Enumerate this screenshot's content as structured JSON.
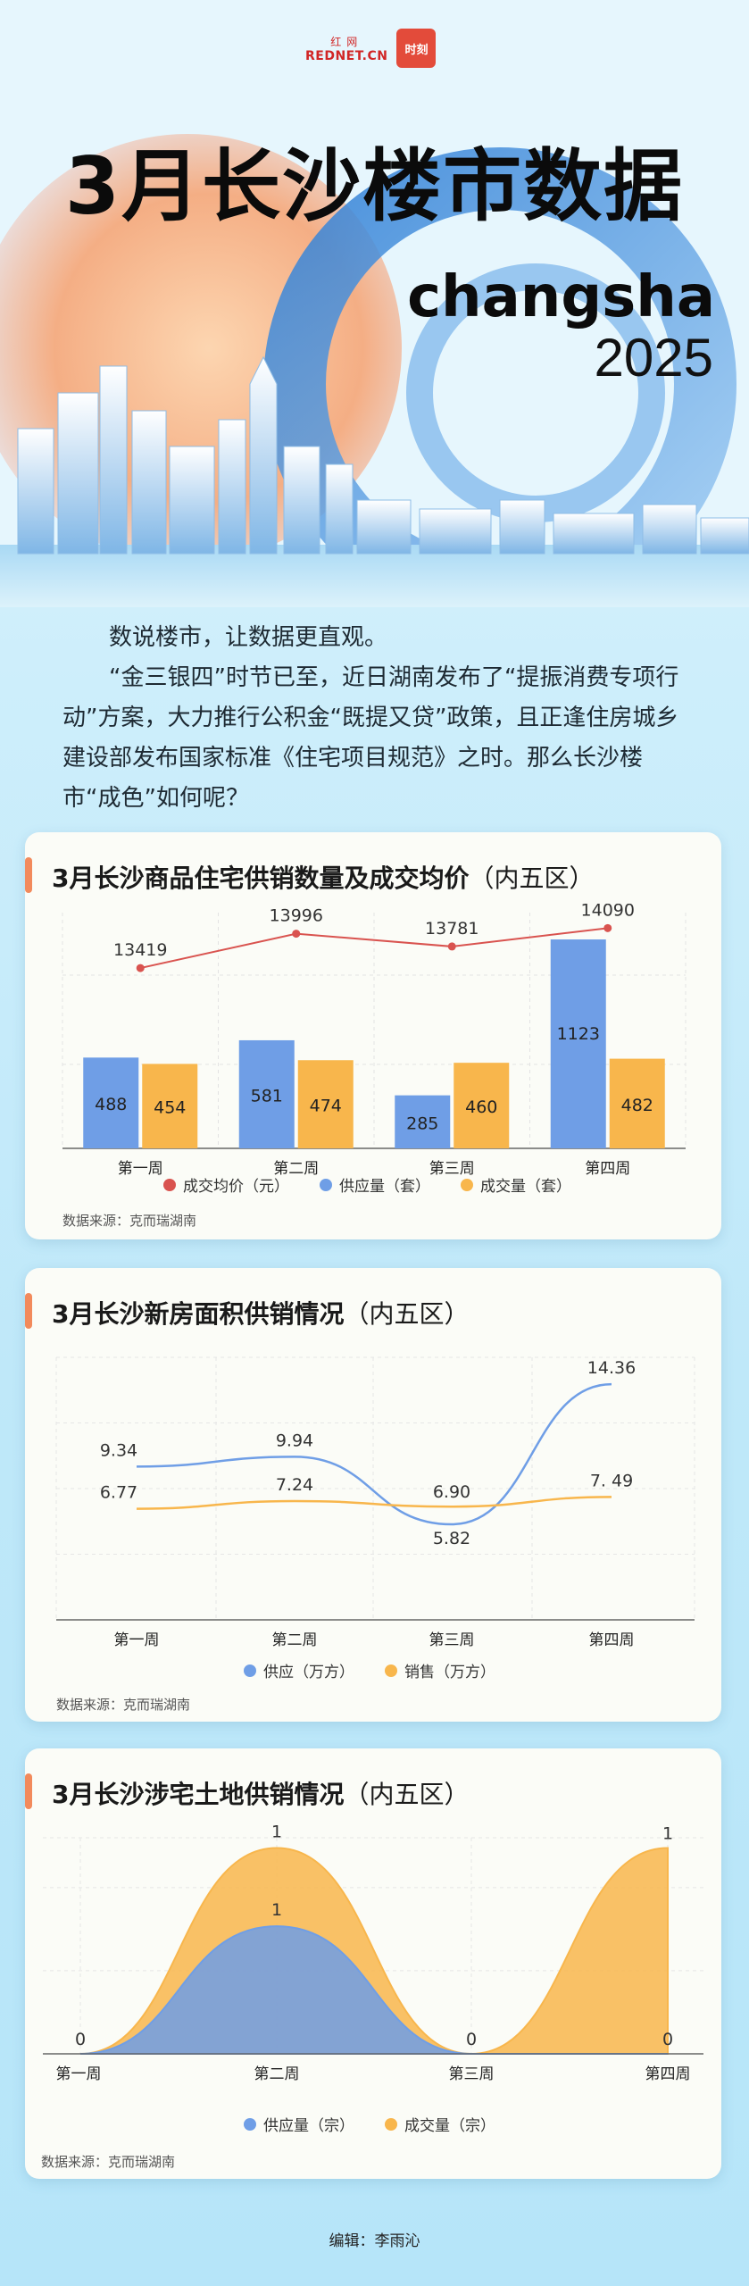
{
  "header": {
    "logo_text": "REDNET.CN",
    "logo_sub": "红网",
    "logo_badge": "时刻",
    "title": "3月长沙楼市数据",
    "subtitle": "changsha",
    "year": "2025"
  },
  "intro": {
    "p1": "数说楼市，让数据更直观。",
    "p2": "“金三银四”时节已至，近日湖南发布了“提振消费专项行动”方案，大力推行公积金“既提又贷”政策，且正逢住房城乡建设部发布国家标准《住宅项目规范》之时。那么长沙楼市“成色”如何呢？"
  },
  "colors": {
    "blue": "#6f9ee6",
    "orange": "#f8b64c",
    "red": "#d9534f",
    "accent": "#f28a5c"
  },
  "chart_data": [
    {
      "type": "bar",
      "title": "3月长沙商品住宅供销数量及成交均价",
      "title_suffix": "（内五区）",
      "categories": [
        "第一周",
        "第二周",
        "第三周",
        "第四周"
      ],
      "series": [
        {
          "name": "供应量（套）",
          "values": [
            488,
            581,
            285,
            1123
          ],
          "color": "#6f9ee6"
        },
        {
          "name": "成交量（套）",
          "values": [
            454,
            474,
            460,
            482
          ],
          "color": "#f8b64c"
        },
        {
          "name": "成交均价（元）",
          "values": [
            13419,
            13996,
            13781,
            14090
          ],
          "color": "#d9534f",
          "type": "line"
        }
      ],
      "legend_order": [
        "成交均价（元）",
        "供应量（套）",
        "成交量（套）"
      ],
      "legend": "bottom",
      "source": "数据来源：克而瑞湖南"
    },
    {
      "type": "line",
      "title": "3月长沙新房面积供销情况",
      "title_suffix": "（内五区）",
      "categories": [
        "第一周",
        "第二周",
        "第三周",
        "第四周"
      ],
      "series": [
        {
          "name": "供应（万方）",
          "values": [
            9.34,
            9.94,
            5.82,
            14.36
          ],
          "labels": [
            "9.34",
            "9.94",
            "5.82",
            "14.36"
          ],
          "color": "#6f9ee6"
        },
        {
          "name": "销售（万方）",
          "values": [
            6.77,
            7.24,
            6.9,
            7.49
          ],
          "labels": [
            "6.77",
            "7.24",
            "6.90",
            "7. 49"
          ],
          "color": "#f8b64c"
        }
      ],
      "legend": "bottom",
      "source": "数据来源：克而瑞湖南"
    },
    {
      "type": "area",
      "title": "3月长沙涉宅土地供销情况",
      "title_suffix": "（内五区）",
      "categories": [
        "第一周",
        "第二周",
        "第三周",
        "第四周"
      ],
      "series": [
        {
          "name": "供应量（宗）",
          "values": [
            0,
            1,
            0,
            0
          ],
          "color": "#6f9ee6"
        },
        {
          "name": "成交量（宗）",
          "values": [
            0,
            1,
            0,
            1
          ],
          "color": "#f8b64c"
        }
      ],
      "legend": "bottom",
      "source": "数据来源：克而瑞湖南"
    }
  ],
  "footer": {
    "editor": "编辑：李雨沁"
  }
}
